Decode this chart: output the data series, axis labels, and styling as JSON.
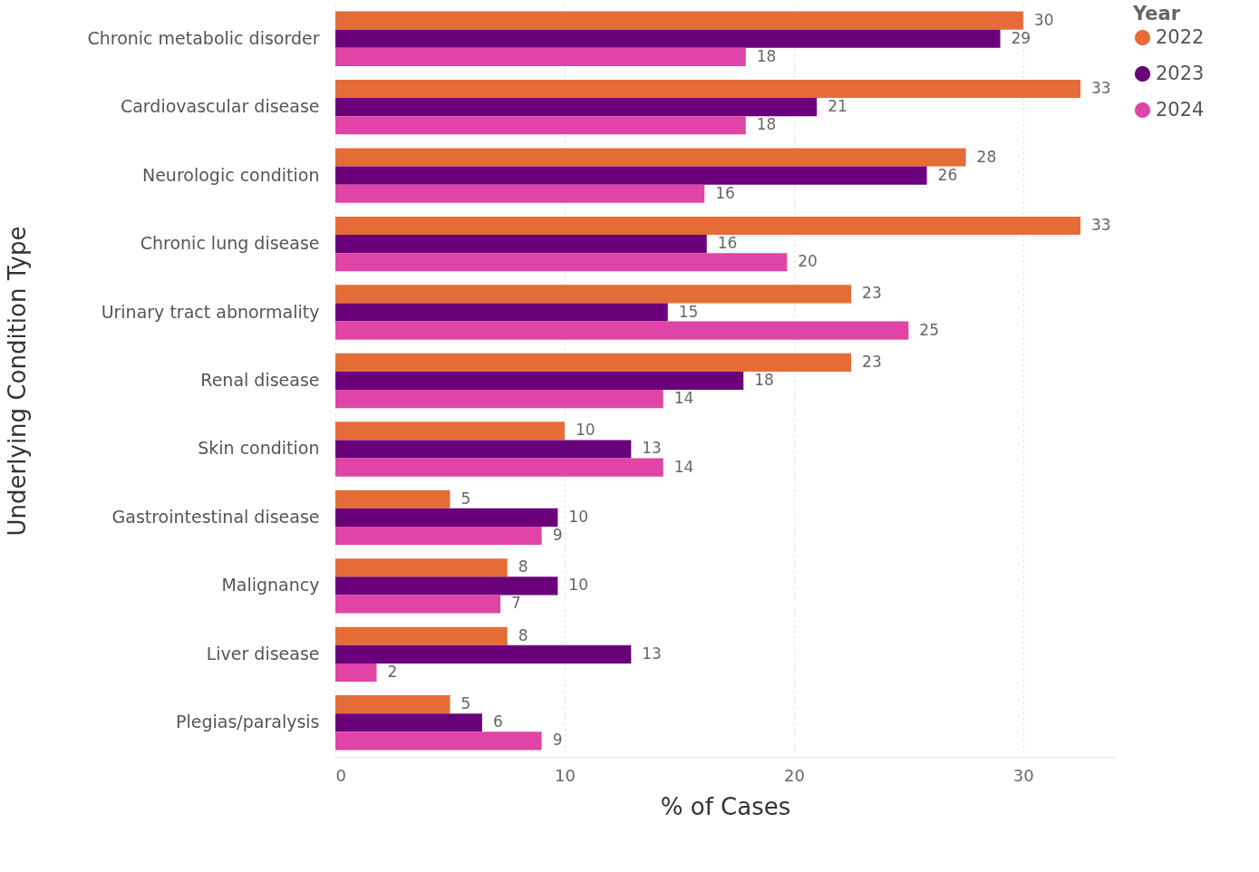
{
  "chart_data": {
    "type": "bar",
    "orientation": "horizontal",
    "xlabel": "% of Cases",
    "ylabel": "Underlying Condition Type",
    "legend_title": "Year",
    "legend": "right",
    "grid": "x",
    "line_style": "dotted",
    "categories": [
      "Chronic metabolic disorder",
      "Cardiovascular disease",
      "Neurologic condition",
      "Chronic lung disease",
      "Urinary tract abnormality",
      "Renal disease",
      "Skin condition",
      "Gastrointestinal disease",
      "Malignancy",
      "Liver disease",
      "Plegias/paralysis"
    ],
    "xlim": [
      0,
      34
    ],
    "xticks": [
      0,
      10,
      20,
      30
    ],
    "series": [
      {
        "name": "2022",
        "color": "#e66c37",
        "values": [
          30.0,
          32.5,
          27.5,
          32.5,
          22.5,
          22.5,
          10.0,
          5.0,
          7.5,
          7.5,
          5.0
        ],
        "value_labels": [
          "30",
          "33",
          "28",
          "33",
          "23",
          "23",
          "10",
          "5",
          "8",
          "8",
          "5"
        ]
      },
      {
        "name": "2023",
        "color": "#6b007b",
        "values": [
          29.0,
          21.0,
          25.8,
          16.2,
          14.5,
          17.8,
          12.9,
          9.7,
          9.7,
          12.9,
          6.4
        ],
        "value_labels": [
          "29",
          "21",
          "26",
          "16",
          "15",
          "18",
          "13",
          "10",
          "10",
          "13",
          "6"
        ]
      },
      {
        "name": "2024",
        "color": "#e044a7",
        "values": [
          17.9,
          17.9,
          16.1,
          19.7,
          25.0,
          14.3,
          14.3,
          9.0,
          7.2,
          1.8,
          9.0
        ],
        "value_labels": [
          "18",
          "18",
          "16",
          "20",
          "25",
          "14",
          "14",
          "9",
          "7",
          "2",
          "9"
        ]
      }
    ]
  }
}
